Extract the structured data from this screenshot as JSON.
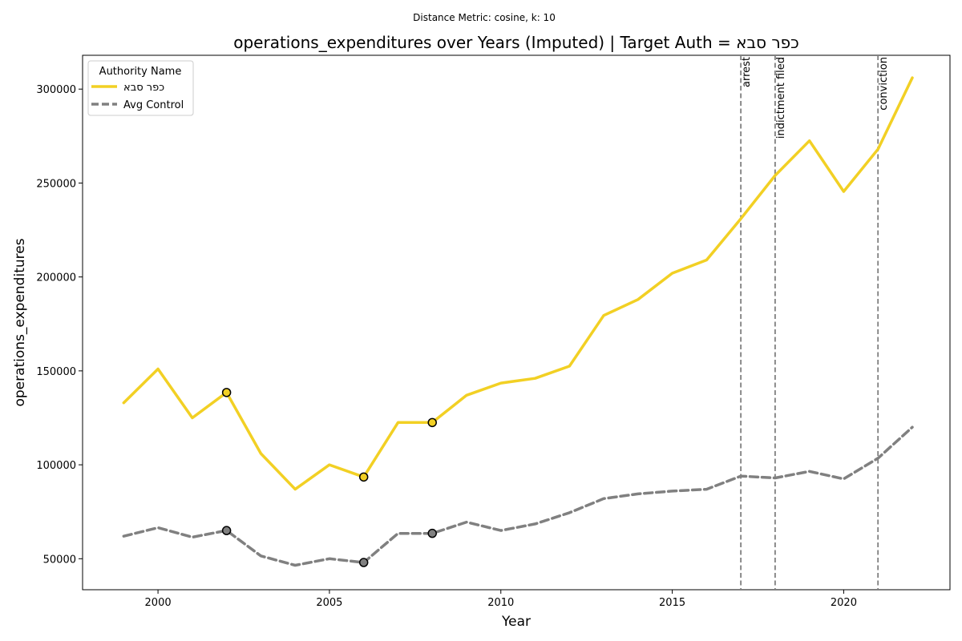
{
  "chart_data": {
    "type": "line",
    "suptitle": "Distance Metric: cosine, k: 10",
    "title": "operations_expenditures over Years (Imputed) | Target Auth = כפר סבא",
    "xlabel": "Year",
    "ylabel": "operations_expenditures",
    "xlim": [
      1997.8,
      2023.1
    ],
    "ylim": [
      33500,
      318000
    ],
    "x_ticks": [
      2000,
      2005,
      2010,
      2015,
      2020
    ],
    "y_ticks": [
      50000,
      100000,
      150000,
      200000,
      250000,
      300000
    ],
    "legend_title": "Authority Name",
    "legend_position": "upper left",
    "grid": false,
    "x": [
      1999,
      2000,
      2001,
      2002,
      2003,
      2004,
      2005,
      2006,
      2007,
      2008,
      2009,
      2010,
      2011,
      2012,
      2013,
      2014,
      2015,
      2016,
      2017,
      2018,
      2019,
      2020,
      2021,
      2022
    ],
    "series": [
      {
        "name": "כפר סבא",
        "color": "#f2d024",
        "style": "solid",
        "values": [
          133000,
          151000,
          125000,
          138500,
          106000,
          87000,
          100000,
          93500,
          122500,
          122500,
          137000,
          143500,
          146000,
          152500,
          179500,
          188000,
          202000,
          209000,
          231000,
          254000,
          272500,
          245500,
          268000,
          306000
        ],
        "imputed_years": [
          2002,
          2006,
          2008
        ]
      },
      {
        "name": "Avg Control",
        "color": "#808080",
        "style": "dashed",
        "values": [
          62000,
          66500,
          61500,
          65000,
          51500,
          46500,
          50000,
          48000,
          63500,
          63500,
          69500,
          65000,
          68500,
          74500,
          82000,
          84500,
          86000,
          87000,
          94000,
          93000,
          96500,
          92500,
          103500,
          120000
        ],
        "imputed_years": [
          2002,
          2006,
          2008
        ]
      }
    ],
    "annotations": [
      {
        "x": 2017,
        "label": "arrest"
      },
      {
        "x": 2018,
        "label": "indictment filed"
      },
      {
        "x": 2021,
        "label": "conviction"
      }
    ]
  }
}
